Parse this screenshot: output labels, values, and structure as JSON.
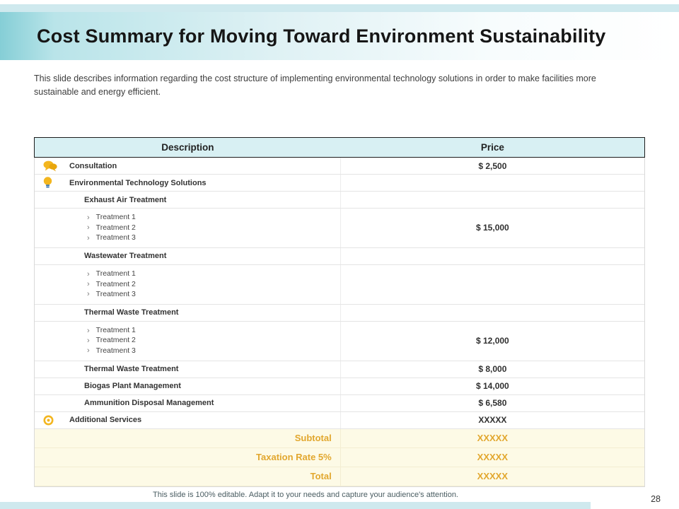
{
  "slide": {
    "title": "Cost Summary for Moving Toward Environment Sustainability",
    "description": "This slide describes information regarding the cost structure of implementing environmental technology solutions in order to make facilities more sustainable and energy efficient.",
    "footer": "This slide is 100% editable. Adapt it to your needs and capture your audience's attention.",
    "page_number": "28"
  },
  "colors": {
    "accent_teal_strip": "#cfe9ee",
    "table_header_teal": "#d8f0f3",
    "accent_yellow": "#e2a72e",
    "icon_yellow": "#f3b61f",
    "summary_row_bg": "#fdfae6"
  },
  "table": {
    "headers": [
      "Description",
      "Price"
    ],
    "rows": [
      {
        "type": "icon",
        "icon": "chat-bubbles-icon",
        "label": "Consultation",
        "price": "$ 2,500"
      },
      {
        "type": "icon",
        "icon": "lightbulb-icon",
        "label": "Environmental Technology Solutions",
        "price": ""
      },
      {
        "type": "sub",
        "label": "Exhaust Air Treatment",
        "price": ""
      },
      {
        "type": "bullets",
        "items": [
          "Treatment 1",
          "Treatment 2",
          "Treatment 3"
        ],
        "price": "$ 15,000"
      },
      {
        "type": "sub",
        "label": "Wastewater Treatment",
        "price": ""
      },
      {
        "type": "bullets",
        "items": [
          "Treatment 1",
          "Treatment 2",
          "Treatment 3"
        ],
        "price": ""
      },
      {
        "type": "sub",
        "label": "Thermal Waste Treatment",
        "price": ""
      },
      {
        "type": "bullets",
        "items": [
          "Treatment 1",
          "Treatment 2",
          "Treatment 3"
        ],
        "price": "$ 12,000"
      },
      {
        "type": "sub",
        "label": "Thermal Waste Treatment",
        "price": "$ 8,000"
      },
      {
        "type": "sub",
        "label": "Biogas Plant Management",
        "price": "$ 14,000"
      },
      {
        "type": "sub",
        "label": "Ammunition Disposal Management",
        "price": "$ 6,580"
      },
      {
        "type": "icon",
        "icon": "target-icon",
        "label": "Additional Services",
        "price": "XXXXX"
      }
    ],
    "summary_rows": [
      {
        "label": "Subtotal",
        "price": "XXXXX"
      },
      {
        "label": "Taxation Rate  5%",
        "price": "XXXXX"
      },
      {
        "label": "Total",
        "price": "XXXXX"
      }
    ]
  }
}
